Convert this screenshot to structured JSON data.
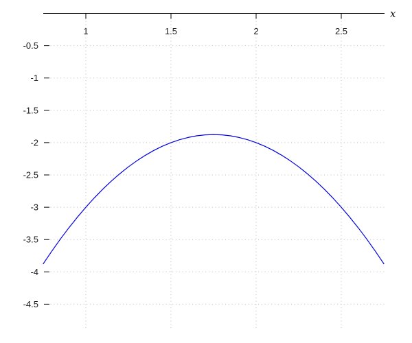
{
  "figure": {
    "background": "#ffffff",
    "axis_color": "#000000",
    "grid_color": "#b8b8b8",
    "text_color": "#1a1a1a"
  },
  "chart_data": {
    "type": "line",
    "title": "",
    "xlabel": "x",
    "ylabel": "",
    "grid": true,
    "legend": "none",
    "x_axis_position": "top (data y = 0)",
    "xlim": [
      0.75,
      2.75
    ],
    "ylim": [
      -4.89,
      0
    ],
    "x_ticks": [
      1,
      1.5,
      2,
      2.5
    ],
    "x_tick_labels": [
      "1",
      "1.5",
      "2",
      "2.5"
    ],
    "y_ticks": [
      -0.5,
      -1,
      -1.5,
      -2,
      -2.5,
      -3,
      -3.5,
      -4,
      -4.5
    ],
    "y_tick_labels": [
      "-0.5",
      "-1",
      "-1.5",
      "-2",
      "-2.5",
      "-3",
      "-3.5",
      "-4",
      "-4.5"
    ],
    "series": [
      {
        "name": "curve",
        "color": "#0000e0",
        "peak": [
          1.75,
          -1.875
        ],
        "x": [
          0.75,
          0.8,
          0.85,
          0.9,
          0.95,
          1.0,
          1.05,
          1.1,
          1.15,
          1.2,
          1.25,
          1.3,
          1.35,
          1.4,
          1.45,
          1.5,
          1.55,
          1.6,
          1.65,
          1.7,
          1.75,
          1.8,
          1.85,
          1.9,
          1.95,
          2.0,
          2.05,
          2.1,
          2.15,
          2.2,
          2.25,
          2.3,
          2.35,
          2.4,
          2.45,
          2.5,
          2.55,
          2.6,
          2.65,
          2.7,
          2.75
        ],
        "y": [
          -3.875,
          -3.68,
          -3.495,
          -3.32,
          -3.155,
          -3.0,
          -2.855,
          -2.72,
          -2.595,
          -2.48,
          -2.375,
          -2.28,
          -2.195,
          -2.12,
          -2.055,
          -2.0,
          -1.955,
          -1.92,
          -1.895,
          -1.88,
          -1.875,
          -1.88,
          -1.895,
          -1.92,
          -1.955,
          -2.0,
          -2.055,
          -2.12,
          -2.195,
          -2.28,
          -2.375,
          -2.48,
          -2.595,
          -2.72,
          -2.855,
          -3.0,
          -3.155,
          -3.32,
          -3.495,
          -3.68,
          -3.875
        ]
      }
    ]
  }
}
